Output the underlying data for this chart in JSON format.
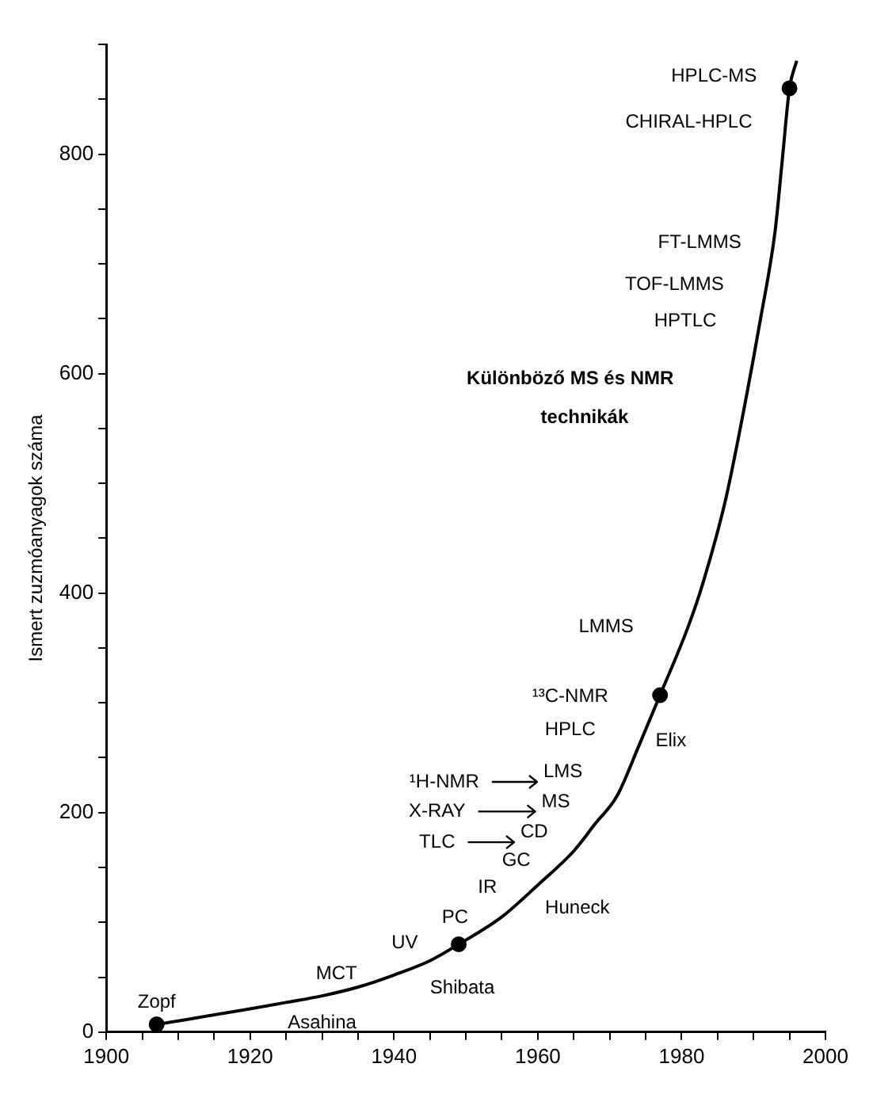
{
  "chart_data": {
    "type": "line",
    "ylabel": "Ismert zuzmóanyagok száma",
    "xlim": [
      1900,
      2000
    ],
    "xticks": [
      1900,
      {
        "value": 1905,
        "label": null
      },
      {
        "value": 1910,
        "label": null
      },
      {
        "value": 1915,
        "label": null
      },
      1920,
      {
        "value": 1925,
        "label": null
      },
      {
        "value": 1930,
        "label": null
      },
      {
        "value": 1935,
        "label": null
      },
      1940,
      {
        "value": 1945,
        "label": null
      },
      {
        "value": 1950,
        "label": null
      },
      {
        "value": 1955,
        "label": null
      },
      1960,
      {
        "value": 1965,
        "label": null
      },
      {
        "value": 1970,
        "label": null
      },
      {
        "value": 1975,
        "label": null
      },
      1980,
      {
        "value": 1985,
        "label": null
      },
      {
        "value": 1990,
        "label": null
      },
      {
        "value": 1995,
        "label": null
      },
      2000
    ],
    "ylim": [
      0,
      900
    ],
    "yticks": [
      0,
      {
        "value": 50,
        "label": null
      },
      {
        "value": 100,
        "label": null
      },
      {
        "value": 150,
        "label": null
      },
      200,
      {
        "value": 250,
        "label": null
      },
      {
        "value": 300,
        "label": null
      },
      {
        "value": 350,
        "label": null
      },
      400,
      {
        "value": 450,
        "label": null
      },
      {
        "value": 500,
        "label": null
      },
      {
        "value": 550,
        "label": null
      },
      600,
      {
        "value": 650,
        "label": null
      },
      {
        "value": 700,
        "label": null
      },
      {
        "value": 750,
        "label": null
      },
      800,
      {
        "value": 850,
        "label": null
      },
      {
        "value": 900,
        "label": null
      }
    ],
    "series": [
      {
        "type": "line",
        "color": "#000000",
        "marker": "none",
        "line_style": "solid",
        "x": [
          1907,
          1919,
          1925,
          1930,
          1935,
          1940,
          1945,
          1949,
          1955,
          1960,
          1965,
          1968,
          1971,
          1974,
          1977,
          1981,
          1983,
          1986,
          1988,
          1991,
          1993,
          1994,
          1995,
          1996
        ],
        "values": [
          7,
          20,
          27,
          33,
          41,
          52,
          65,
          80,
          105,
          134,
          165,
          190,
          215,
          260,
          307,
          371,
          410,
          482,
          545,
          651,
          730,
          795,
          860,
          885
        ]
      },
      {
        "type": "scatter",
        "color": "#000000",
        "marker": "circle",
        "x": [
          1907,
          1949,
          1977,
          1995
        ],
        "values": [
          7,
          80,
          307,
          860
        ]
      }
    ],
    "annotations": [
      "HPLC-MS",
      "CHIRAL-HPLC",
      "FT-LMMS",
      "TOF-LMMS",
      "HPTLC",
      "Különböző MS és NMR",
      "technikák",
      "LMMS",
      "¹³C-NMR",
      "Elix",
      "HPLC",
      "¹H-NMR",
      "LMS",
      "X-RAY",
      "MS",
      "TLC",
      "CD",
      "GC",
      "IR",
      "Huneck",
      "PC",
      "UV",
      "MCT",
      "Shibata",
      "Zopf",
      "Asahina"
    ]
  }
}
